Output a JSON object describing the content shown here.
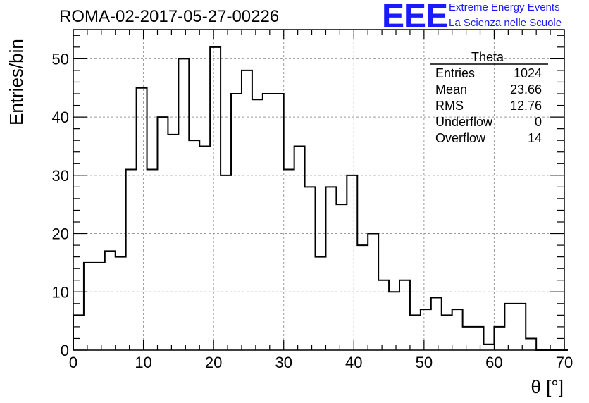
{
  "header": {
    "title": "ROMA-02-2017-05-27-00226",
    "logo_mark": "EEE",
    "logo_line1": "Extreme Energy Events",
    "logo_line2": "La Scienza nelle Scuole"
  },
  "stats": {
    "name": "Theta",
    "rows": [
      {
        "label": "Entries",
        "value": "1024"
      },
      {
        "label": "Mean",
        "value": "23.66"
      },
      {
        "label": "RMS",
        "value": "12.76"
      },
      {
        "label": "Underflow",
        "value": "0"
      },
      {
        "label": "Overflow",
        "value": "14"
      }
    ]
  },
  "chart_data": {
    "type": "bar",
    "style": "step-histogram",
    "xlabel": "θ [°]",
    "ylabel": "Entries/bin",
    "xlim": [
      0,
      70
    ],
    "ylim": [
      0,
      55
    ],
    "grid": true,
    "x_ticks": [
      0,
      10,
      20,
      30,
      40,
      50,
      60,
      70
    ],
    "y_ticks": [
      0,
      10,
      20,
      30,
      40,
      50
    ],
    "bin_width": 1.5,
    "bin_edges_start": 0,
    "values": [
      6,
      15,
      15,
      17,
      16,
      31,
      45,
      31,
      40,
      37,
      50,
      36,
      35,
      52,
      30,
      44,
      48,
      43,
      44,
      44,
      31,
      35,
      28,
      16,
      28,
      25,
      30,
      18,
      20,
      12,
      10,
      12,
      6,
      7,
      9,
      6,
      7,
      4,
      4,
      1,
      4,
      8,
      8,
      2,
      0,
      0,
      0
    ]
  }
}
